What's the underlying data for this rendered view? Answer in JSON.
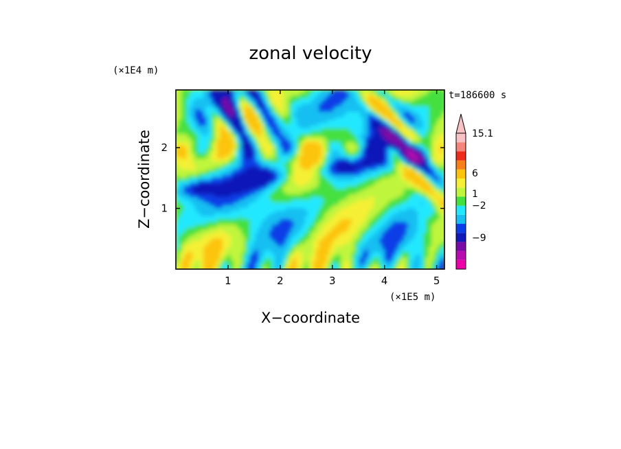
{
  "chart_data": {
    "type": "heatmap",
    "title": "zonal velocity",
    "xlabel": "X−coordinate",
    "ylabel": "Z−coordinate",
    "x_units": "(×1E5 m)",
    "y_units": "(×1E4 m)",
    "time_label": "t=186600 s",
    "xlim": [
      0,
      5.15
    ],
    "ylim": [
      0,
      2.95
    ],
    "x_ticks": [
      1,
      2,
      3,
      4,
      5
    ],
    "y_ticks": [
      1,
      2
    ],
    "x_tick_labels": [
      "1",
      "2",
      "3",
      "4",
      "5"
    ],
    "y_tick_labels": [
      "1",
      "2"
    ],
    "colorbar": {
      "levels": [
        -15,
        -12,
        -9,
        -6,
        -3,
        -2,
        -1,
        0,
        1,
        2,
        3,
        6,
        9,
        12,
        15.1
      ],
      "colors": [
        "#ee00a8",
        "#b80cb0",
        "#7a0aa6",
        "#1018b8",
        "#0b3ee6",
        "#17bff2",
        "#22e8ff",
        "#44e040",
        "#c0f53c",
        "#f5f035",
        "#fcc40c",
        "#f88018",
        "#ee2c1c",
        "#f5857a",
        "#f9c2c2"
      ],
      "extend_max": true,
      "tick_labels": [
        "15.1",
        "6",
        "1",
        "−2",
        "−9"
      ]
    }
  }
}
